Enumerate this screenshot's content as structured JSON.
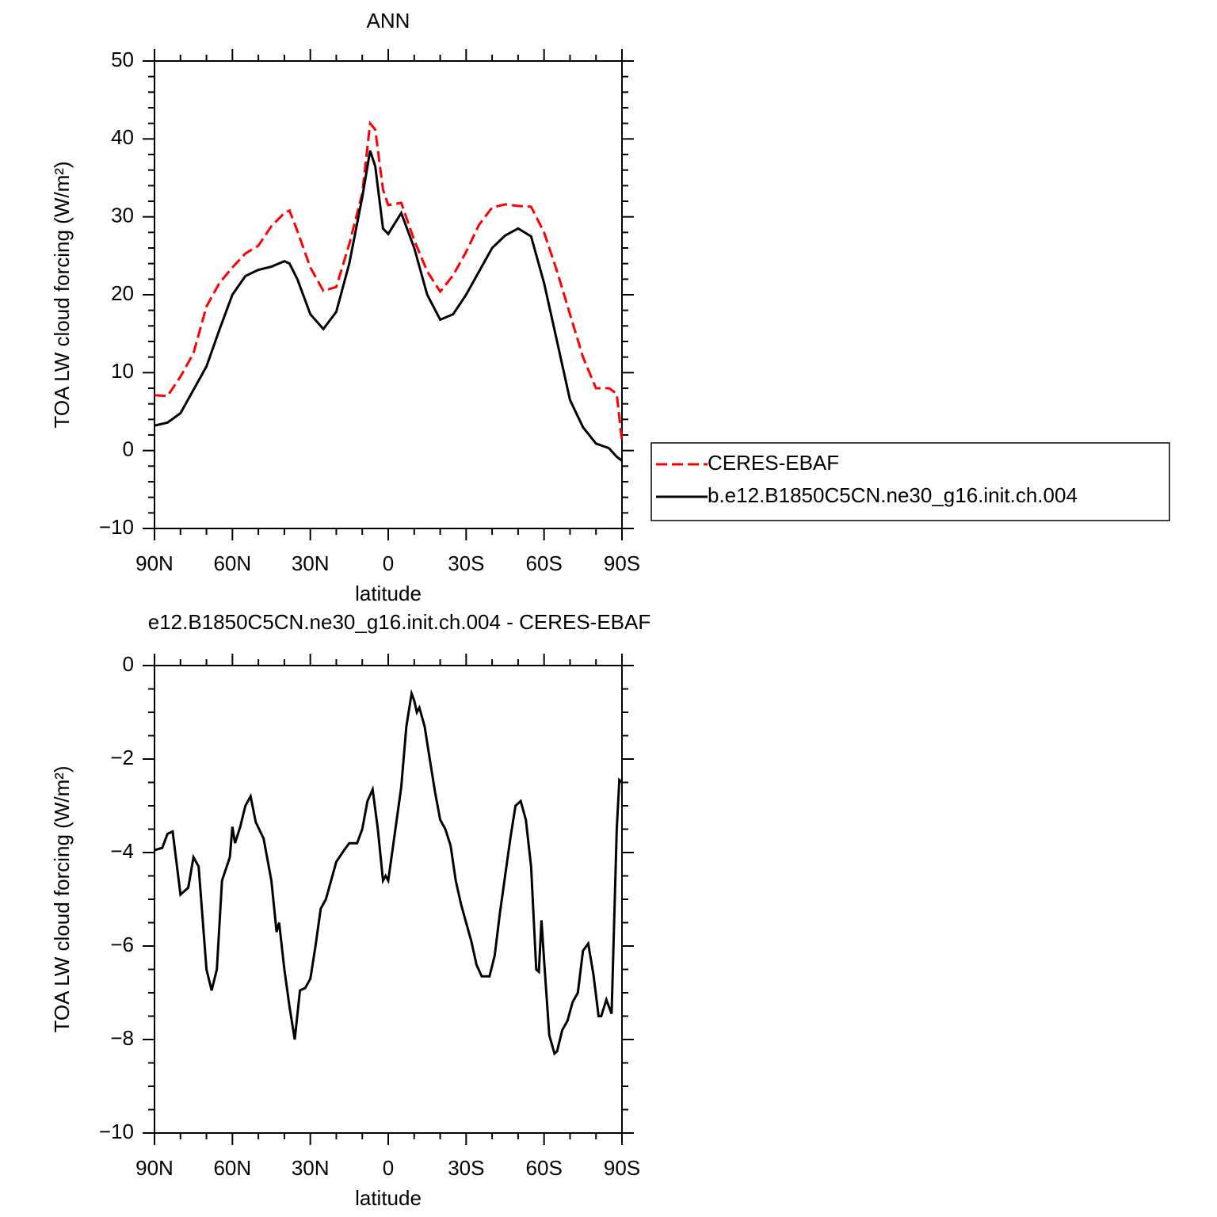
{
  "chart_data": [
    {
      "type": "line",
      "title": "ANN",
      "x_label": "latitude",
      "y_label": "TOA LW cloud forcing (W/m²)",
      "x": [
        90,
        85,
        80,
        75,
        70,
        65,
        60,
        55,
        50,
        45,
        40,
        38,
        35,
        30,
        25,
        20,
        15,
        10,
        7,
        5,
        2,
        0,
        -5,
        -10,
        -15,
        -20,
        -25,
        -30,
        -35,
        -40,
        -45,
        -50,
        -55,
        -60,
        -65,
        -70,
        -75,
        -80,
        -85,
        -88,
        -90
      ],
      "series": [
        {
          "name": "CERES-EBAF",
          "color": "#ff0000",
          "line_style": "dashed",
          "values": [
            7.1,
            7.0,
            9.5,
            12.5,
            18.5,
            21.5,
            23.5,
            25.3,
            26.3,
            28.8,
            30.5,
            30.8,
            28.2,
            23.5,
            20.5,
            21,
            26.5,
            33,
            42,
            41.2,
            33.5,
            31.5,
            31.8,
            27,
            23,
            20.4,
            22.5,
            25.5,
            29,
            31.2,
            31.6,
            31.4,
            31.3,
            28,
            23,
            17.5,
            12,
            8,
            8,
            7.3,
            1.2
          ]
        },
        {
          "name": "b.e12.B1850C5CN.ne30_g16.init.ch.004",
          "color": "#000000",
          "line_style": "solid",
          "values": [
            3.2,
            3.6,
            4.8,
            7.8,
            10.8,
            15.5,
            20,
            22.4,
            23.2,
            23.6,
            24.3,
            24,
            22,
            17.5,
            15.6,
            17.8,
            24,
            32.5,
            38.5,
            36.5,
            28.5,
            27.8,
            30.5,
            26,
            20,
            16.8,
            17.5,
            20,
            23,
            26,
            27.6,
            28.5,
            27.5,
            21.5,
            14,
            6.5,
            3,
            0.9,
            0.3,
            -0.8,
            -1.3
          ]
        }
      ],
      "xlim": [
        90,
        -90
      ],
      "xticks": [
        {
          "value": 90,
          "label": "90N"
        },
        {
          "value": 60,
          "label": "60N"
        },
        {
          "value": 30,
          "label": "30N"
        },
        0,
        {
          "value": -30,
          "label": "30S"
        },
        {
          "value": -60,
          "label": "60S"
        },
        {
          "value": -90,
          "label": "90S"
        }
      ],
      "ylim": [
        -10,
        50
      ],
      "yticks": [
        -10,
        0,
        10,
        20,
        30,
        40,
        50
      ],
      "legend": "outside right"
    },
    {
      "type": "line",
      "title": "e12.B1850C5CN.ne30_g16.init.ch.004 - CERES-EBAF",
      "x_label": "latitude",
      "y_label": "TOA LW cloud forcing (W/m²)",
      "x": [
        90,
        87,
        85,
        83,
        80,
        77,
        75,
        73,
        70,
        68,
        66,
        64,
        61,
        60,
        59,
        57,
        55,
        53,
        51,
        48,
        45,
        43,
        42,
        40,
        38,
        36,
        34,
        32,
        30,
        28,
        26,
        24,
        22,
        20,
        17,
        15,
        12,
        10,
        8,
        6,
        4,
        2,
        1,
        0,
        -2,
        -5,
        -7,
        -8,
        -9,
        -10,
        -11,
        -12,
        -14,
        -16,
        -18,
        -20,
        -22,
        -24,
        -26,
        -28,
        -30,
        -32,
        -34,
        -36,
        -39,
        -41,
        -43,
        -45,
        -47,
        -49,
        -51,
        -53,
        -55,
        -57,
        -58,
        -59,
        -60,
        -62,
        -64,
        -65,
        -67,
        -69,
        -71,
        -73,
        -75,
        -77,
        -79,
        -81,
        -82,
        -84,
        -86,
        -88,
        -89,
        -90
      ],
      "values": [
        -3.95,
        -3.9,
        -3.6,
        -3.55,
        -4.9,
        -4.75,
        -4.1,
        -4.3,
        -6.5,
        -6.95,
        -6.5,
        -4.6,
        -4.1,
        -3.45,
        -3.8,
        -3.45,
        -3.0,
        -2.8,
        -3.35,
        -3.7,
        -4.6,
        -5.7,
        -5.5,
        -6.5,
        -7.3,
        -8.0,
        -6.95,
        -6.9,
        -6.7,
        -6.0,
        -5.2,
        -5.0,
        -4.6,
        -4.2,
        -3.95,
        -3.8,
        -3.8,
        -3.5,
        -2.9,
        -2.65,
        -3.5,
        -4.6,
        -4.5,
        -4.6,
        -3.8,
        -2.6,
        -1.3,
        -0.95,
        -0.6,
        -0.75,
        -1.0,
        -0.9,
        -1.3,
        -2.0,
        -2.7,
        -3.3,
        -3.5,
        -3.85,
        -4.6,
        -5.1,
        -5.5,
        -5.9,
        -6.4,
        -6.65,
        -6.65,
        -6.2,
        -5.3,
        -4.5,
        -3.7,
        -3.0,
        -2.9,
        -3.3,
        -4.3,
        -6.5,
        -6.55,
        -5.45,
        -6.3,
        -7.9,
        -8.3,
        -8.25,
        -7.8,
        -7.6,
        -7.2,
        -7.0,
        -6.1,
        -5.95,
        -6.6,
        -7.5,
        -7.5,
        -7.15,
        -7.45,
        -3.5,
        -2.45,
        -2.5
      ],
      "color": "#000000",
      "xlim": [
        90,
        -90
      ],
      "xticks": [
        {
          "value": 90,
          "label": "90N"
        },
        {
          "value": 60,
          "label": "60N"
        },
        {
          "value": 30,
          "label": "30N"
        },
        0,
        {
          "value": -30,
          "label": "30S"
        },
        {
          "value": -60,
          "label": "60S"
        },
        {
          "value": -90,
          "label": "90S"
        }
      ],
      "ylim": [
        -10,
        0
      ],
      "yticks": [
        -10,
        -8,
        -6,
        -4,
        -2,
        0
      ]
    }
  ]
}
